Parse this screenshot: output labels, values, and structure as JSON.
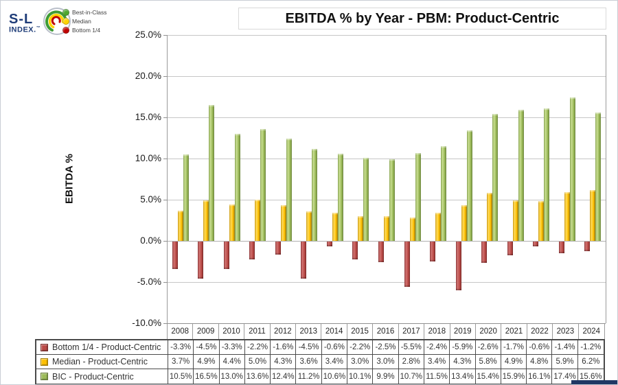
{
  "logo": {
    "top": "S-L",
    "bottom": "INDEX.",
    "tm": "™"
  },
  "mini_legend": {
    "items": [
      {
        "label": "Best-in-Class",
        "color": "#4ea72e"
      },
      {
        "label": "Median",
        "color": "#ffd400"
      },
      {
        "label": "Bottom 1/4",
        "color": "#c00000"
      }
    ]
  },
  "title": "EBITDA % by Year - PBM: Product-Centric",
  "chart_data": {
    "type": "bar",
    "title": "EBITDA % by Year - PBM: Product-Centric",
    "xlabel": "",
    "ylabel": "EBITDA %",
    "ylim": [
      -10,
      25
    ],
    "ytick_step": 5,
    "ytick_labels": [
      "25.0%",
      "20.0%",
      "15.0%",
      "10.0%",
      "5.0%",
      "0.0%",
      "-5.0%",
      "-10.0%"
    ],
    "grid": true,
    "legend_position": "top-left",
    "categories": [
      "2008",
      "2009",
      "2010",
      "2011",
      "2012",
      "2013",
      "2014",
      "2015",
      "2016",
      "2017",
      "2018",
      "2019",
      "2020",
      "2021",
      "2022",
      "2023",
      "2024"
    ],
    "series": [
      {
        "name": "Bottom 1/4 - Product-Centric",
        "color": "#bb4a47",
        "values": [
          -3.3,
          -4.5,
          -3.3,
          -2.2,
          -1.6,
          -4.5,
          -0.6,
          -2.2,
          -2.5,
          -5.5,
          -2.4,
          -5.9,
          -2.6,
          -1.7,
          -0.6,
          -1.4,
          -1.2
        ]
      },
      {
        "name": "Median - Product-Centric",
        "color": "#fec000",
        "values": [
          3.7,
          4.9,
          4.4,
          5.0,
          4.3,
          3.6,
          3.4,
          3.0,
          3.0,
          2.8,
          3.4,
          4.3,
          5.8,
          4.9,
          4.8,
          5.9,
          6.2
        ]
      },
      {
        "name": "BIC - Product-Centric",
        "color": "#9cbb59",
        "values": [
          10.5,
          16.5,
          13.0,
          13.6,
          12.4,
          11.2,
          10.6,
          10.1,
          9.9,
          10.7,
          11.5,
          13.4,
          15.4,
          15.9,
          16.1,
          17.4,
          15.6
        ]
      }
    ]
  },
  "table": {
    "rows": [
      {
        "label": "Bottom 1/4 - Product-Centric",
        "color": "#bb4a47",
        "values": [
          "-3.3%",
          "-4.5%",
          "-3.3%",
          "-2.2%",
          "-1.6%",
          "-4.5%",
          "-0.6%",
          "-2.2%",
          "-2.5%",
          "-5.5%",
          "-2.4%",
          "-5.9%",
          "-2.6%",
          "-1.7%",
          "-0.6%",
          "-1.4%",
          "-1.2%"
        ]
      },
      {
        "label": "Median - Product-Centric",
        "color": "#fec000",
        "values": [
          "3.7%",
          "4.9%",
          "4.4%",
          "5.0%",
          "4.3%",
          "3.6%",
          "3.4%",
          "3.0%",
          "3.0%",
          "2.8%",
          "3.4%",
          "4.3%",
          "5.8%",
          "4.9%",
          "4.8%",
          "5.9%",
          "6.2%"
        ]
      },
      {
        "label": "BIC - Product-Centric",
        "color": "#9cbb59",
        "values": [
          "10.5%",
          "16.5%",
          "13.0%",
          "13.6%",
          "12.4%",
          "11.2%",
          "10.6%",
          "10.1%",
          "9.9%",
          "10.7%",
          "11.5%",
          "13.4%",
          "15.4%",
          "15.9%",
          "16.1%",
          "17.4%",
          "15.6%"
        ]
      }
    ]
  }
}
